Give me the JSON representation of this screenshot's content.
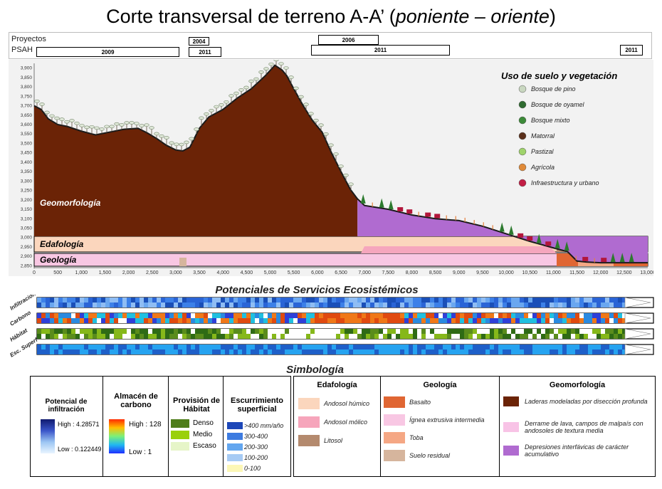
{
  "title": {
    "main": "Corte transversal de terreno A-A’ (",
    "italic": "poniente – oriente",
    "close": ")"
  },
  "projects": {
    "label_projects": "Proyectos",
    "label_psah": "PSAH",
    "bars": [
      "2009",
      "2004",
      "2011",
      "2006",
      "2011",
      "2011"
    ]
  },
  "chart_data": {
    "type": "area",
    "xlabel": "",
    "ylabel": "",
    "xlim": [
      0,
      13000
    ],
    "ylim": [
      2825,
      3925
    ],
    "x_ticks": [
      "0",
      "500",
      "1,000",
      "1,500",
      "2,000",
      "2,500",
      "3,000",
      "3,500",
      "4,000",
      "4,500",
      "5,000",
      "5,500",
      "6,000",
      "6,500",
      "7,000",
      "7,500",
      "8,000",
      "8,500",
      "9,000",
      "9,500",
      "10,000",
      "10,500",
      "11,000",
      "11,500",
      "12,000",
      "12,500",
      "13,000"
    ],
    "y_ticks": [
      "2,850",
      "2,900",
      "2,950",
      "3,000",
      "3,050",
      "3,100",
      "3,150",
      "3,200",
      "3,250",
      "3,300",
      "3,350",
      "3,400",
      "3,450",
      "3,500",
      "3,550",
      "3,600",
      "3,650",
      "3,700",
      "3,750",
      "3,800",
      "3,850",
      "3,900"
    ],
    "profile": {
      "x": [
        0,
        150,
        300,
        500,
        700,
        1000,
        1300,
        1600,
        1900,
        2200,
        2400,
        2600,
        2800,
        3000,
        3150,
        3300,
        3500,
        3700,
        4000,
        4300,
        4600,
        4900,
        5100,
        5250,
        5350,
        5500,
        5700,
        5900,
        6100,
        6300,
        6500,
        6700,
        6850,
        7000,
        7500,
        8000,
        8500,
        9000,
        9500,
        10000,
        10500,
        11000,
        11300,
        11500,
        11700,
        12000,
        12300,
        12600,
        12800,
        13000
      ],
      "y": [
        3700,
        3680,
        3630,
        3600,
        3590,
        3565,
        3545,
        3560,
        3575,
        3580,
        3555,
        3525,
        3490,
        3465,
        3460,
        3480,
        3580,
        3640,
        3680,
        3740,
        3790,
        3860,
        3915,
        3890,
        3860,
        3790,
        3700,
        3620,
        3560,
        3450,
        3350,
        3255,
        3205,
        3170,
        3150,
        3120,
        3100,
        3090,
        3060,
        3020,
        2980,
        2945,
        2925,
        2875,
        2870,
        2866,
        2866,
        2866,
        2866,
        2866
      ]
    },
    "series": [
      {
        "name": "Geomorfología"
      },
      {
        "name": "Edafología"
      },
      {
        "name": "Geología"
      }
    ],
    "legend_title": "Uso de suelo y vegetación",
    "legend": [
      "Bosque de pino",
      "Bosque de oyamel",
      "Bosque mixto",
      "Matorral",
      "Pastizal",
      "Agrícola",
      "Infraestructura y urbano"
    ],
    "legend_position": "top-right"
  },
  "services": {
    "title": "Potenciales de Servicios Ecosistémicos",
    "rows": [
      "Infiltración",
      "Carbono",
      "Hábitat",
      "Esc. Superf"
    ]
  },
  "symbology": {
    "title": "Simbología",
    "infiltration": {
      "title1": "Potencial de",
      "title2": "infiltración",
      "high": "High : 4.28571",
      "low": "Low : 0.122449"
    },
    "carbon": {
      "title1": "Almacén de",
      "title2": "carbono",
      "high": "High : 128",
      "low": "Low : 1"
    },
    "habitat": {
      "title1": "Provisión de",
      "title2": "Hábitat",
      "items": [
        "Denso",
        "Medio",
        "Escaso"
      ],
      "colors": [
        "#4e7d1a",
        "#9ad00b",
        "#e6f5c8"
      ]
    },
    "runoff": {
      "title1": "Escurrimiento",
      "title2": "superficial",
      "items": [
        ">400 mm/año",
        "300-400",
        "200-300",
        "100-200",
        "0-100"
      ],
      "colors": [
        "#1d47b8",
        "#3d7be0",
        "#63a6ef",
        "#a7cbf4",
        "#fcf7b6"
      ]
    },
    "edafologia": {
      "title": "Edafología",
      "items": [
        "Andosol húmico",
        "Andosol mólico",
        "Litosol"
      ],
      "colors": [
        "#fbd6bd",
        "#f6a5bb",
        "#b48a6e"
      ]
    },
    "geologia": {
      "title": "Geología",
      "items": [
        "Basalto",
        "Ígnea extrusiva intermedia",
        "Toba",
        "Suelo residual"
      ],
      "colors": [
        "#e06633",
        "#f8c7e3",
        "#f5a784",
        "#d6b59d"
      ]
    },
    "geomorfologia": {
      "title": "Geomorfología",
      "items": [
        "Laderas modeladas por disección profunda",
        "Derrame de lava, campos de malpaís con andosoles de textura media",
        "Depresiones interfávicas de carácter acumulativo"
      ],
      "colors": [
        "#6b2306",
        "#f8c3e6",
        "#b06bd0"
      ]
    }
  },
  "colors": {
    "geomorfologia_brown": "#6b2306",
    "geomorfologia_purple": "#b06bd0",
    "edafologia": "#fbd6bd",
    "geologia": "#f8c7e3"
  }
}
